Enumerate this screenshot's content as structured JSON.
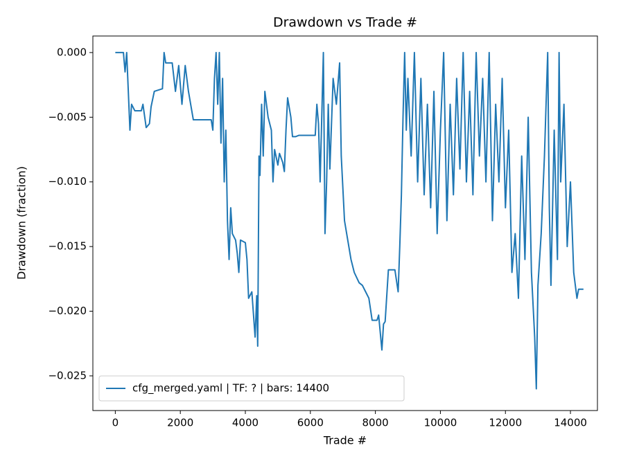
{
  "chart_data": {
    "type": "line",
    "title": "Drawdown vs Trade #",
    "x_label": "Trade #",
    "y_label": "Drawdown (fraction)",
    "legend": "lower left",
    "x": [
      0,
      250,
      300,
      350,
      400,
      450,
      500,
      600,
      800,
      850,
      950,
      1050,
      1100,
      1200,
      1450,
      1500,
      1550,
      1750,
      1850,
      1950,
      2050,
      2150,
      2250,
      2400,
      2950,
      3000,
      3050,
      3100,
      3150,
      3200,
      3250,
      3300,
      3350,
      3400,
      3450,
      3500,
      3550,
      3600,
      3700,
      3750,
      3800,
      3850,
      4000,
      4050,
      4100,
      4200,
      4300,
      4350,
      4380,
      4420,
      4450,
      4500,
      4550,
      4600,
      4700,
      4800,
      4850,
      4900,
      5000,
      5050,
      5150,
      5200,
      5250,
      5300,
      5400,
      5450,
      5550,
      5650,
      6150,
      6200,
      6250,
      6300,
      6350,
      6400,
      6450,
      6500,
      6550,
      6600,
      6700,
      6800,
      6900,
      6950,
      7050,
      7150,
      7250,
      7350,
      7500,
      7600,
      7700,
      7800,
      7900,
      8050,
      8100,
      8200,
      8250,
      8300,
      8400,
      8600,
      8700,
      8750,
      8800,
      8850,
      8900,
      8950,
      9000,
      9100,
      9200,
      9300,
      9400,
      9500,
      9600,
      9700,
      9800,
      9900,
      10000,
      10100,
      10200,
      10300,
      10400,
      10500,
      10600,
      10700,
      10800,
      10900,
      11000,
      11100,
      11200,
      11300,
      11400,
      11500,
      11600,
      11700,
      11800,
      11900,
      12000,
      12100,
      12200,
      12300,
      12400,
      12500,
      12600,
      12700,
      12800,
      12900,
      12950,
      13000,
      13100,
      13200,
      13300,
      13350,
      13400,
      13500,
      13600,
      13650,
      13700,
      13800,
      13900,
      14000,
      14100,
      14200,
      14250,
      14400
    ],
    "series": [
      {
        "name": "cfg_merged.yaml | TF: ? | bars: 14400",
        "color": "#1f77b4",
        "values": [
          0,
          0,
          -0.0015,
          0,
          -0.003,
          -0.006,
          -0.004,
          -0.0045,
          -0.0045,
          -0.004,
          -0.0058,
          -0.0055,
          -0.0042,
          -0.003,
          -0.0028,
          0,
          -0.0008,
          -0.0008,
          -0.003,
          -0.001,
          -0.004,
          -0.001,
          -0.003,
          -0.0052,
          -0.0052,
          -0.006,
          -0.002,
          0,
          -0.004,
          0,
          -0.007,
          -0.002,
          -0.01,
          -0.006,
          -0.013,
          -0.016,
          -0.012,
          -0.014,
          -0.0145,
          -0.0155,
          -0.017,
          -0.0145,
          -0.0147,
          -0.016,
          -0.019,
          -0.0185,
          -0.022,
          -0.0188,
          -0.0227,
          -0.008,
          -0.0095,
          -0.004,
          -0.008,
          -0.003,
          -0.005,
          -0.006,
          -0.01,
          -0.0075,
          -0.0087,
          -0.0078,
          -0.0085,
          -0.0092,
          -0.006,
          -0.0035,
          -0.005,
          -0.0065,
          -0.0065,
          -0.0064,
          -0.0064,
          -0.004,
          -0.0055,
          -0.01,
          -0.005,
          0,
          -0.014,
          -0.01,
          -0.004,
          -0.009,
          -0.002,
          -0.004,
          -0.0008,
          -0.008,
          -0.013,
          -0.0145,
          -0.016,
          -0.017,
          -0.0178,
          -0.018,
          -0.0185,
          -0.019,
          -0.0207,
          -0.0207,
          -0.0203,
          -0.023,
          -0.021,
          -0.0208,
          -0.0168,
          -0.0168,
          -0.0185,
          -0.015,
          -0.011,
          -0.005,
          0,
          -0.006,
          -0.002,
          -0.008,
          0,
          -0.01,
          -0.002,
          -0.011,
          -0.004,
          -0.012,
          -0.003,
          -0.014,
          -0.006,
          0,
          -0.013,
          -0.004,
          -0.011,
          -0.002,
          -0.009,
          0,
          -0.01,
          -0.003,
          -0.011,
          0,
          -0.008,
          -0.002,
          -0.01,
          0,
          -0.013,
          -0.004,
          -0.01,
          -0.002,
          -0.012,
          -0.006,
          -0.017,
          -0.014,
          -0.019,
          -0.008,
          -0.016,
          -0.005,
          -0.017,
          -0.022,
          -0.026,
          -0.018,
          -0.014,
          -0.008,
          0,
          -0.012,
          -0.018,
          -0.006,
          -0.016,
          0,
          -0.01,
          -0.004,
          -0.015,
          -0.01,
          -0.017,
          -0.019,
          -0.0183,
          -0.0183
        ]
      }
    ],
    "xlim": [
      -690,
      14830
    ],
    "ylim": [
      -0.02768,
      0.00128
    ],
    "xticks": [
      0,
      2000,
      4000,
      6000,
      8000,
      10000,
      12000,
      14000
    ],
    "yticks": [
      {
        "value": 0,
        "label": "0.000"
      },
      {
        "value": -0.005,
        "label": "−0.005"
      },
      {
        "value": -0.01,
        "label": "−0.010"
      },
      {
        "value": -0.015,
        "label": "−0.015"
      },
      {
        "value": -0.02,
        "label": "−0.020"
      },
      {
        "value": -0.025,
        "label": "−0.025"
      }
    ]
  }
}
